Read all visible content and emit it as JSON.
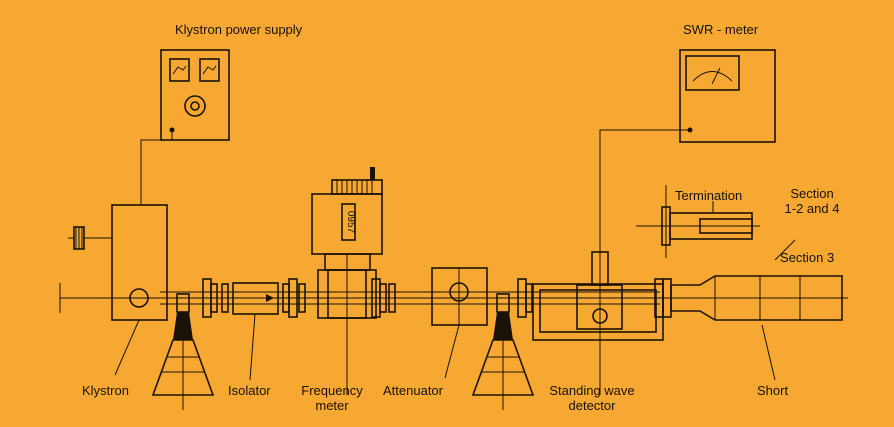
{
  "labels": {
    "klystron_power_supply": "Klystron power supply",
    "swr_meter": "SWR - meter",
    "termination": "Termination",
    "section_1_2_4": [
      "Section",
      "1-2 and 4"
    ],
    "section_3": "Section 3",
    "klystron": "Klystron",
    "isolator": "Isolator",
    "frequency_meter": [
      "Frequency",
      "meter"
    ],
    "attenuator": "Attenuator",
    "standing_wave_detector": [
      "Standing wave",
      "detector"
    ],
    "short": "Short",
    "dial_reading": "0957"
  },
  "colors": {
    "background": "#f6a833",
    "ink": "#1a1208"
  }
}
